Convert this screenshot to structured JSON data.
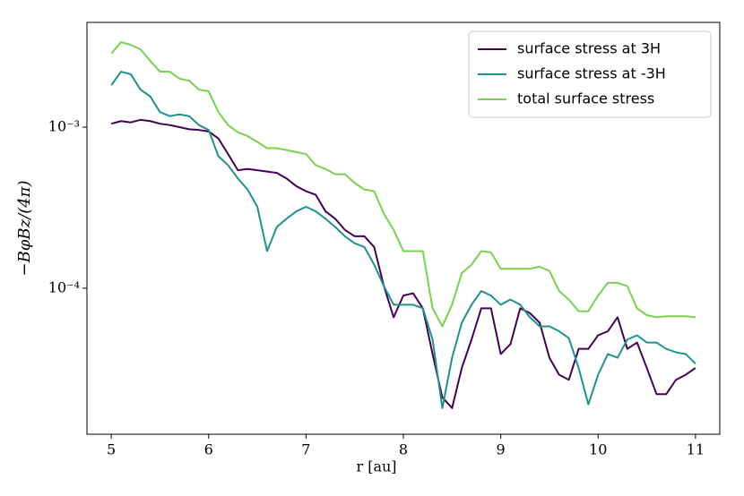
{
  "chart_data": {
    "type": "line",
    "x_label": "r [au]",
    "y_label": "−BφBz/(4π)",
    "x": [
      5.0,
      5.1,
      5.2,
      5.3,
      5.4,
      5.5,
      5.6,
      5.7,
      5.8,
      5.9,
      6.0,
      6.1,
      6.2,
      6.3,
      6.4,
      6.5,
      6.6,
      6.7,
      6.8,
      6.9,
      7.0,
      7.1,
      7.2,
      7.3,
      7.4,
      7.5,
      7.6,
      7.7,
      7.8,
      7.9,
      8.0,
      8.1,
      8.2,
      8.3,
      8.4,
      8.5,
      8.6,
      8.7,
      8.8,
      8.9,
      9.0,
      9.1,
      9.2,
      9.3,
      9.4,
      9.5,
      9.6,
      9.7,
      9.8,
      9.9,
      10.0,
      10.1,
      10.2,
      10.3,
      10.4,
      10.5,
      10.6,
      10.7,
      10.8,
      10.9,
      11.0
    ],
    "series": [
      {
        "name": "surface stress at 3H",
        "color": "#440154",
        "values": [
          0.00105,
          0.00109,
          0.00107,
          0.00111,
          0.00109,
          0.00105,
          0.00103,
          0.001,
          0.00097,
          0.00096,
          0.00094,
          0.00085,
          0.00068,
          0.00054,
          0.00055,
          0.00054,
          0.00053,
          0.00052,
          0.00048,
          0.00043,
          0.0004,
          0.00038,
          0.0003,
          0.00027,
          0.00023,
          0.00021,
          0.00021,
          0.00018,
          0.000103,
          6.6e-05,
          9e-05,
          9.3e-05,
          7.5e-05,
          3.9e-05,
          2.1e-05,
          1.8e-05,
          3.2e-05,
          4.8e-05,
          7.5e-05,
          7.5e-05,
          3.9e-05,
          4.5e-05,
          7.5e-05,
          7e-05,
          6.1e-05,
          3.7e-05,
          2.9e-05,
          2.7e-05,
          4.2e-05,
          4.2e-05,
          5.1e-05,
          5.4e-05,
          6.6e-05,
          4.2e-05,
          4.6e-05,
          3.2e-05,
          2.2e-05,
          2.2e-05,
          2.7e-05,
          2.9e-05,
          3.2e-05
        ]
      },
      {
        "name": "surface stress at -3H",
        "color": "#21918c",
        "values": [
          0.00182,
          0.00221,
          0.00213,
          0.00171,
          0.00155,
          0.00124,
          0.00117,
          0.0012,
          0.00117,
          0.00103,
          0.00096,
          0.00066,
          0.00058,
          0.00048,
          0.00041,
          0.00032,
          0.00017,
          0.00024,
          0.00027,
          0.0003,
          0.00032,
          0.0003,
          0.00027,
          0.00024,
          0.00021,
          0.00019,
          0.00018,
          0.00014,
          0.000103,
          7.9e-05,
          7.9e-05,
          7.9e-05,
          7.5e-05,
          4.8e-05,
          1.8e-05,
          3.7e-05,
          6.1e-05,
          7.9e-05,
          9.6e-05,
          9e-05,
          7.9e-05,
          8.5e-05,
          7.9e-05,
          6.6e-05,
          5.8e-05,
          5.8e-05,
          5.4e-05,
          4.9e-05,
          3.2e-05,
          1.9e-05,
          2.9e-05,
          3.9e-05,
          3.7e-05,
          4.8e-05,
          5.1e-05,
          4.6e-05,
          4.6e-05,
          4.2e-05,
          4e-05,
          3.9e-05,
          3.4e-05
        ]
      },
      {
        "name": "total surface stress",
        "color": "#7ad151",
        "values": [
          0.00286,
          0.00337,
          0.00324,
          0.00304,
          0.00258,
          0.00221,
          0.00221,
          0.002,
          0.00194,
          0.00171,
          0.00167,
          0.00124,
          0.00103,
          0.00093,
          0.00088,
          0.00081,
          0.00074,
          0.00074,
          0.00072,
          0.0007,
          0.00068,
          0.00058,
          0.00055,
          0.00051,
          0.00051,
          0.00045,
          0.00041,
          0.0004,
          0.00029,
          0.00023,
          0.00017,
          0.00017,
          0.00017,
          7.5e-05,
          5.8e-05,
          7.9e-05,
          0.000124,
          0.00014,
          0.00017,
          0.000167,
          0.000132,
          0.000132,
          0.000132,
          0.000132,
          0.000136,
          0.000128,
          9.6e-05,
          8.5e-05,
          7.2e-05,
          7.2e-05,
          9e-05,
          0.000108,
          0.000108,
          0.000103,
          7.5e-05,
          6.8e-05,
          6.6e-05,
          6.7e-05,
          6.7e-05,
          6.7e-05,
          6.6e-05
        ]
      }
    ],
    "xlim": [
      4.75,
      11.25
    ],
    "xticks": [
      5,
      6,
      7,
      8,
      9,
      10,
      11
    ],
    "ylim": [
      1.24e-05,
      0.00447
    ],
    "log_y": true,
    "yticks": [
      {
        "value": 0.001,
        "label": "10⁻³"
      },
      {
        "value": 0.0001,
        "label": "10⁻⁴"
      }
    ],
    "legend": "upper right"
  }
}
